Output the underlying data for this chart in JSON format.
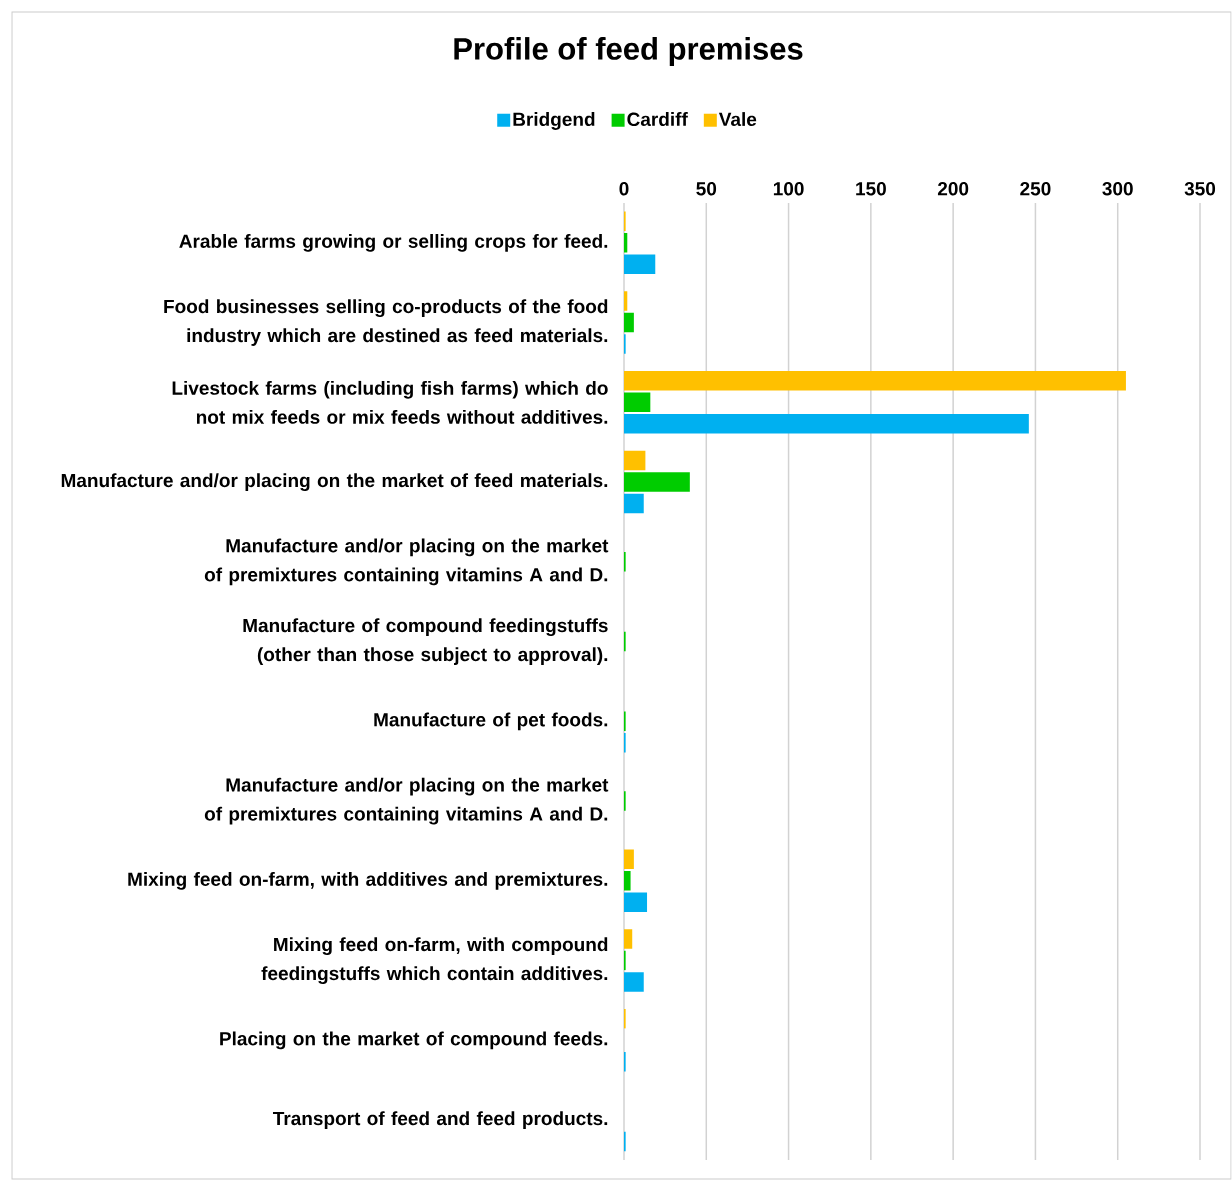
{
  "chart_data": {
    "type": "bar",
    "orientation": "horizontal",
    "title": "Profile of feed premises",
    "categories": [
      "Arable farms growing or selling crops for feed.",
      "Food businesses selling co-products of the food industry which are destined as feed materials.",
      "Livestock farms (including fish farms) which do not mix feeds or mix feeds without additives.",
      "Manufacture and/or placing on the market of feed materials.",
      "Manufacture and/or placing on the market of premixtures containing vitamins A and D.",
      "Manufacture of compound feedingstuffs (other than those subject to approval).",
      "Manufacture of pet foods.",
      "Manufacture and/or placing on the market of premixtures containing vitamins A and D.",
      "Mixing feed on-farm, with additives and premixtures.",
      "Mixing feed on-farm, with compound feedingstuffs which contain additives.",
      "Placing on the market of compound feeds.",
      "Transport of feed and feed products."
    ],
    "series": [
      {
        "name": "Bridgend",
        "color": "#00b0f0",
        "values": [
          19,
          1,
          246,
          12,
          null,
          null,
          1,
          null,
          14,
          12,
          1,
          1
        ]
      },
      {
        "name": "Cardiff",
        "color": "#00cc00",
        "values": [
          2,
          6,
          16,
          40,
          1,
          1,
          1,
          1,
          4,
          1,
          null,
          null
        ]
      },
      {
        "name": "Vale",
        "color": "#ffc000",
        "values": [
          1,
          2,
          305,
          13,
          null,
          null,
          null,
          null,
          6,
          5,
          1,
          null
        ]
      }
    ],
    "xlim": [
      0,
      350
    ],
    "xticks": [
      0,
      50,
      100,
      150,
      200,
      250,
      300,
      350
    ],
    "grid": "x",
    "legend": "top"
  }
}
